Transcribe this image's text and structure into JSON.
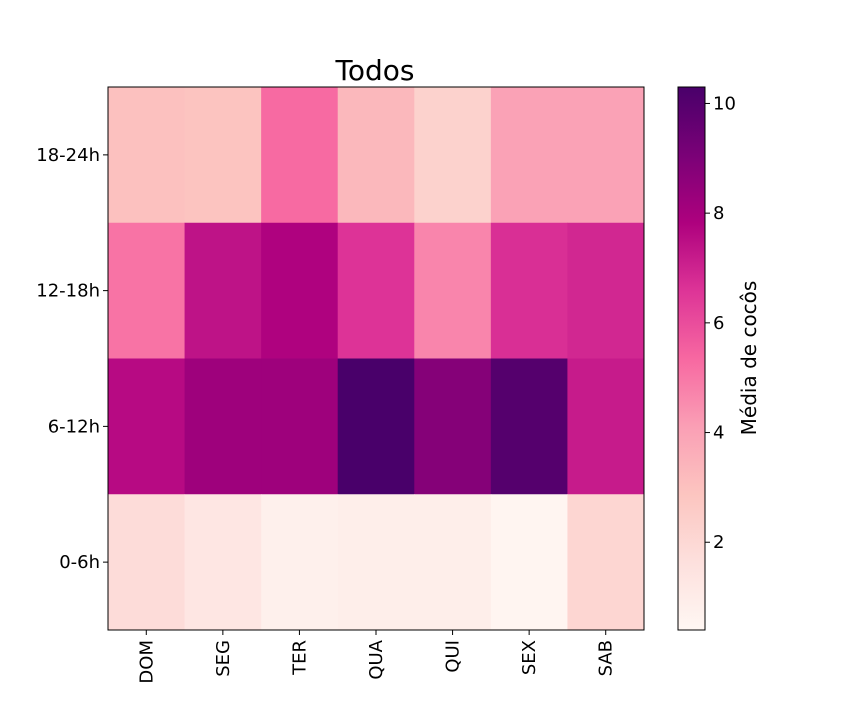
{
  "chart_data": {
    "type": "heatmap",
    "title": "Todos",
    "x_categories": [
      "DOM",
      "SEG",
      "TER",
      "QUA",
      "QUI",
      "SEX",
      "SAB"
    ],
    "y_categories": [
      "18-24h",
      "12-18h",
      "6-12h",
      "0-6h"
    ],
    "values": [
      [
        3.0,
        2.9,
        5.3,
        3.3,
        2.3,
        4.0,
        4.0
      ],
      [
        5.1,
        7.4,
        7.8,
        6.6,
        4.7,
        6.7,
        6.9
      ],
      [
        7.6,
        8.2,
        8.2,
        10.3,
        8.8,
        10.0,
        7.2
      ],
      [
        1.8,
        1.3,
        0.8,
        0.9,
        0.9,
        0.5,
        2.1
      ]
    ],
    "colorbar": {
      "label": "Média de cocôs",
      "range": [
        0.4,
        10.3
      ],
      "ticks": [
        2,
        4,
        6,
        8,
        10
      ],
      "colormap": "RdPu",
      "colors": [
        "#fff7f3",
        "#fde0dd",
        "#fcc5c0",
        "#fa9fb5",
        "#f768a1",
        "#dd3497",
        "#ae017e",
        "#7a0177",
        "#49006a"
      ]
    }
  }
}
